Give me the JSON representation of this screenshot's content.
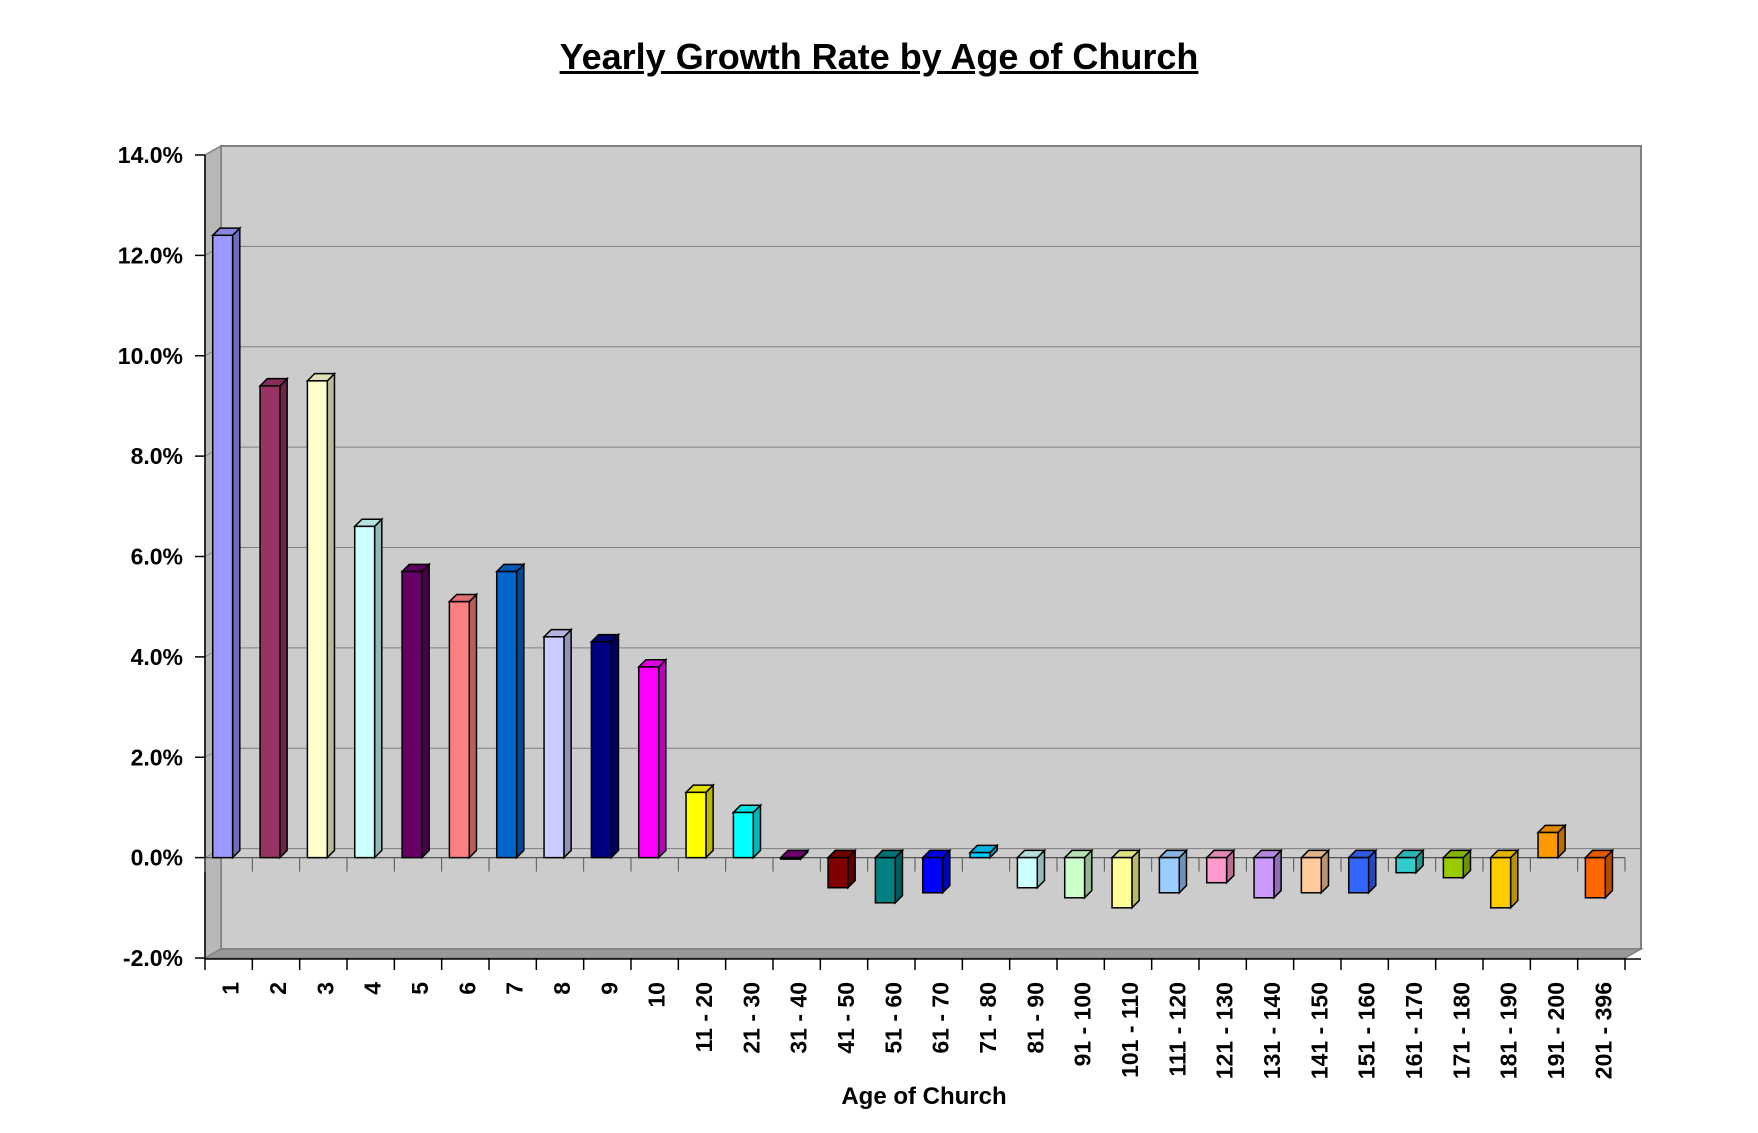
{
  "chart_data": {
    "type": "bar",
    "title": "Yearly Growth Rate by Age of Church",
    "xlabel": "Age of Church",
    "ylabel": "",
    "ylim": [
      -2.0,
      14.0
    ],
    "yticks": [
      {
        "value": 14.0,
        "label": "14.0%"
      },
      {
        "value": 12.0,
        "label": "12.0%"
      },
      {
        "value": 10.0,
        "label": "10.0%"
      },
      {
        "value": 8.0,
        "label": "8.0%"
      },
      {
        "value": 6.0,
        "label": "6.0%"
      },
      {
        "value": 4.0,
        "label": "4.0%"
      },
      {
        "value": 2.0,
        "label": "2.0%"
      },
      {
        "value": 0.0,
        "label": "0.0%"
      },
      {
        "value": -2.0,
        "label": "-2.0%"
      }
    ],
    "grid": true,
    "legend": "none",
    "categories": [
      "1",
      "2",
      "3",
      "4",
      "5",
      "6",
      "7",
      "8",
      "9",
      "10",
      "11 - 20",
      "21 - 30",
      "31 - 40",
      "41 - 50",
      "51 - 60",
      "61 - 70",
      "71 - 80",
      "81 - 90",
      "91 - 100",
      "101 - 110",
      "111 - 120",
      "121 - 130",
      "131 - 140",
      "141 - 150",
      "151 - 160",
      "161 - 170",
      "171 - 180",
      "181 - 190",
      "191 - 200",
      "201 - 396"
    ],
    "values": [
      12.4,
      9.4,
      9.5,
      6.6,
      5.7,
      5.1,
      5.7,
      4.4,
      4.3,
      3.8,
      1.3,
      0.9,
      0.0,
      -0.6,
      -0.9,
      -0.7,
      0.1,
      -0.6,
      -0.8,
      -1.0,
      -0.7,
      -0.5,
      -0.8,
      -0.7,
      -0.7,
      -0.3,
      -0.4,
      -1.0,
      0.5,
      -0.8
    ],
    "colors": [
      "#9999ff",
      "#993366",
      "#ffffcc",
      "#ccffff",
      "#660066",
      "#ff8080",
      "#0066cc",
      "#ccccff",
      "#000080",
      "#ff00ff",
      "#ffff00",
      "#00ffff",
      "#800080",
      "#800000",
      "#008080",
      "#0000ff",
      "#00ccff",
      "#ccffff",
      "#ccffcc",
      "#ffff99",
      "#99ccff",
      "#ff99cc",
      "#cc99ff",
      "#ffcc99",
      "#3366ff",
      "#33cccc",
      "#99cc00",
      "#ffcc00",
      "#ff9900",
      "#ff6600"
    ],
    "plot_background": "#cccccc",
    "floor_color": "#999999"
  }
}
